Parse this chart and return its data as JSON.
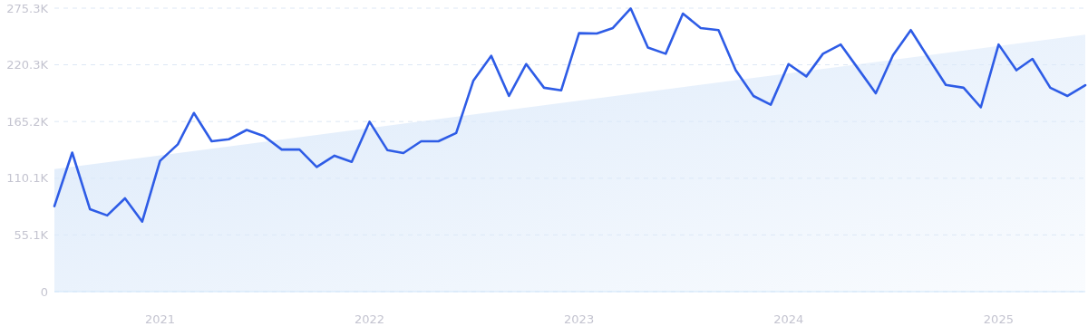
{
  "chart_data": {
    "type": "line",
    "x": [
      "2020-07",
      "2020-08",
      "2020-09",
      "2020-10",
      "2020-11",
      "2020-12",
      "2021-01",
      "2021-02",
      "2021-03",
      "2021-04",
      "2021-05",
      "2021-06",
      "2021-07",
      "2021-08",
      "2021-09",
      "2021-10",
      "2021-11",
      "2021-12",
      "2022-01",
      "2022-02",
      "2022-03",
      "2022-04",
      "2022-05",
      "2022-06",
      "2022-07",
      "2022-08",
      "2022-09",
      "2022-10",
      "2022-11",
      "2022-12",
      "2023-01",
      "2023-02",
      "2023-03",
      "2023-04",
      "2023-05",
      "2023-06",
      "2023-07",
      "2023-08",
      "2023-09",
      "2023-10",
      "2023-11",
      "2023-12",
      "2024-01",
      "2024-02",
      "2024-03",
      "2024-04",
      "2024-05",
      "2024-06",
      "2024-07",
      "2024-08",
      "2024-09",
      "2024-10",
      "2024-11",
      "2024-12",
      "2025-01",
      "2025-02",
      "2025-03",
      "2025-04",
      "2025-05",
      "2025-06"
    ],
    "series": [
      {
        "type": "area",
        "x": [
          "2020-07",
          "2025-06"
        ],
        "color": "#dbe9fa",
        "values": [
          119000,
          249500
        ]
      },
      {
        "color": "#2e5ce6",
        "values": [
          83000,
          135000,
          80000,
          74000,
          90600,
          68000,
          127000,
          143000,
          173500,
          146000,
          148000,
          157000,
          151000,
          138000,
          138000,
          121000,
          132000,
          126000,
          165000,
          137500,
          134600,
          146000,
          146000,
          154000,
          205000,
          229000,
          190000,
          221000,
          198000,
          195500,
          251000,
          250700,
          256000,
          275000,
          237000,
          231000,
          270000,
          256000,
          254000,
          215000,
          190000,
          181500,
          221000,
          209000,
          231000,
          240000,
          216700,
          192600,
          229600,
          254000,
          226700,
          200800,
          198000,
          179000,
          240000,
          215000,
          226000,
          198000,
          190000,
          200500
        ]
      }
    ],
    "xlim": [
      "2020-07",
      "2025-06"
    ],
    "xticks": [
      "2021",
      "2022",
      "2023",
      "2024",
      "2025"
    ],
    "ylim": [
      0,
      275300
    ],
    "yticks": [
      0,
      {
        "value": 55100,
        "label": "55.1K"
      },
      {
        "value": 110100,
        "label": "110.1K"
      },
      {
        "value": 165200,
        "label": "165.2K"
      },
      {
        "value": 220300,
        "label": "220.3K"
      },
      {
        "value": 275300,
        "label": "275.3K"
      }
    ],
    "grid": "y",
    "line_style": "solid"
  }
}
